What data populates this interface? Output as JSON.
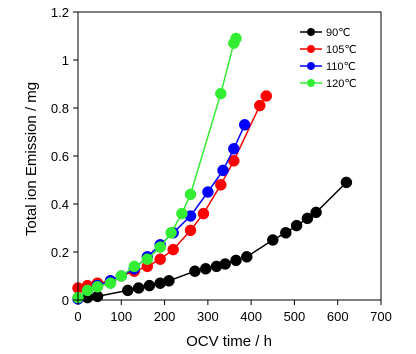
{
  "chart_data": {
    "type": "line",
    "title": "",
    "xlabel": "OCV time / h",
    "ylabel": "Total ion Emission / mg",
    "xlim": [
      0,
      700
    ],
    "ylim": [
      0,
      1.2
    ],
    "xticks": [
      0,
      100,
      200,
      300,
      400,
      500,
      600,
      700
    ],
    "yticks": [
      0,
      0.2,
      0.4,
      0.6,
      0.8,
      1,
      1.2
    ],
    "ytick_labels": [
      "0",
      "0.2",
      "0.4",
      "0.6",
      "0.8",
      "1",
      "1.2"
    ],
    "grid": false,
    "legend_position": "top-right",
    "series": [
      {
        "name": "90℃",
        "color": "#000000",
        "x": [
          0,
          22,
          45,
          115,
          140,
          165,
          190,
          210,
          270,
          295,
          320,
          340,
          365,
          390,
          450,
          480,
          505,
          530,
          550,
          620
        ],
        "y": [
          0.005,
          0.01,
          0.015,
          0.04,
          0.05,
          0.06,
          0.07,
          0.08,
          0.12,
          0.13,
          0.14,
          0.15,
          0.165,
          0.18,
          0.25,
          0.28,
          0.31,
          0.34,
          0.365,
          0.49
        ]
      },
      {
        "name": "105℃",
        "color": "#ff0000",
        "x": [
          0,
          22,
          45,
          75,
          100,
          130,
          160,
          190,
          220,
          260,
          290,
          330,
          360,
          420,
          435
        ],
        "y": [
          0.05,
          0.06,
          0.07,
          0.08,
          0.1,
          0.12,
          0.14,
          0.17,
          0.21,
          0.29,
          0.36,
          0.48,
          0.58,
          0.81,
          0.85
        ]
      },
      {
        "name": "110℃",
        "color": "#0000ff",
        "x": [
          0,
          22,
          45,
          75,
          100,
          130,
          160,
          190,
          220,
          260,
          300,
          335,
          360,
          385
        ],
        "y": [
          0.005,
          0.04,
          0.06,
          0.08,
          0.1,
          0.13,
          0.18,
          0.23,
          0.28,
          0.35,
          0.45,
          0.54,
          0.63,
          0.73
        ]
      },
      {
        "name": "120℃",
        "color": "#33ee33",
        "x": [
          0,
          22,
          45,
          75,
          100,
          130,
          160,
          190,
          215,
          240,
          260,
          330,
          360,
          365
        ],
        "y": [
          0.01,
          0.04,
          0.055,
          0.07,
          0.1,
          0.14,
          0.17,
          0.22,
          0.28,
          0.36,
          0.44,
          0.86,
          1.07,
          1.09
        ]
      }
    ]
  }
}
